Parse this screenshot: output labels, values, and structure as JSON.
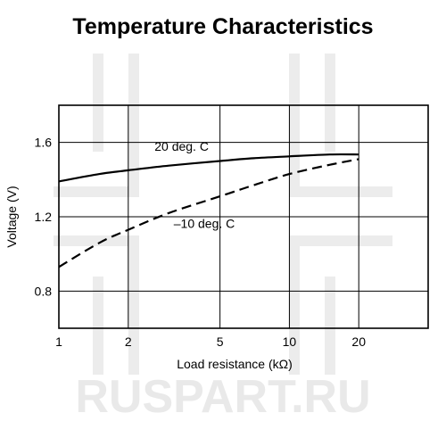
{
  "watermark": {
    "text": "RUSPART.RU",
    "color": "#e9e9e9"
  },
  "chart_data": {
    "type": "line",
    "title": "Temperature Characteristics",
    "xlabel": "Load resistance (kΩ)",
    "ylabel": "Voltage (V)",
    "x_scale": "log",
    "xlim": [
      1,
      40
    ],
    "ylim": [
      0.6,
      1.8
    ],
    "x_ticks": [
      1,
      2,
      5,
      10,
      20
    ],
    "y_ticks": [
      0.8,
      1.2,
      1.6
    ],
    "grid": true,
    "series": [
      {
        "name": "20 deg. C",
        "style": "solid",
        "color": "#000000",
        "x": [
          1,
          1.5,
          2,
          3,
          5,
          7,
          10,
          15,
          20
        ],
        "y": [
          1.39,
          1.43,
          1.45,
          1.475,
          1.5,
          1.515,
          1.525,
          1.535,
          1.535
        ]
      },
      {
        "name": "–10 deg. C",
        "style": "dashed",
        "color": "#000000",
        "x": [
          1,
          1.5,
          2,
          3,
          5,
          7,
          10,
          15,
          20
        ],
        "y": [
          0.93,
          1.06,
          1.13,
          1.22,
          1.31,
          1.37,
          1.43,
          1.48,
          1.51
        ]
      }
    ]
  }
}
